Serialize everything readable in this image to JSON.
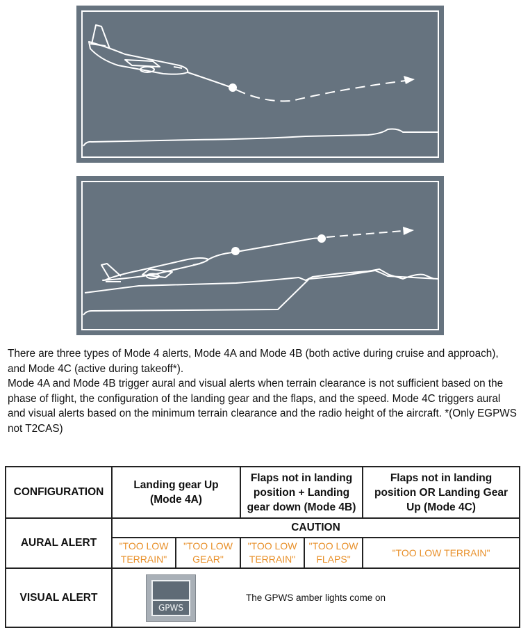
{
  "description": {
    "paragraph1": "There are three types of Mode 4 alerts, Mode 4A and Mode 4B (both active during cruise and approach), and Mode 4C (active during takeoff*).",
    "paragraph2": "Mode 4A and Mode 4B trigger aural and visual alerts when terrain clearance is not sufficient based on the phase of flight, the configuration of the landing gear and the flaps, and the speed. Mode 4C triggers aural and visual alerts based on the minimum terrain clearance and the radio height of the aircraft. *(Only EGPWS not T2CAS)"
  },
  "table": {
    "config_label": "CONFIGURATION",
    "col_4a": "Landing gear Up (Mode 4A)",
    "col_4b": "Flaps not in landing position + Landing gear down (Mode 4B)",
    "col_4c": "Flaps not in landing position OR Landing Gear Up (Mode 4C)",
    "aural_label": "AURAL ALERT",
    "caution": "CAUTION",
    "aural": {
      "a1": "\"TOO LOW TERRAIN\"",
      "a2": "\"TOO LOW GEAR\"",
      "b1": "\"TOO LOW TERRAIN\"",
      "b2": "\"TOO LOW FLAPS\"",
      "c": "\"TOO LOW TERRAIN\""
    },
    "visual_label": "VISUAL ALERT",
    "visual_text": "The GPWS amber lights come on",
    "gpws_label": "GPWS"
  },
  "colors": {
    "panel": "#66737f",
    "line": "#ffffff",
    "amber_text": "#e8902a"
  },
  "icons": [
    "aircraft-icon",
    "gpws-indicator-icon"
  ]
}
